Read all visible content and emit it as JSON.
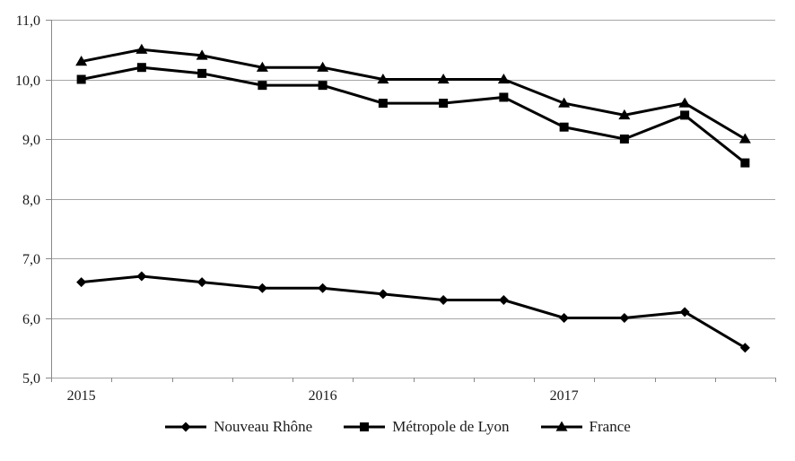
{
  "chart_data": {
    "type": "line",
    "n_points": 12,
    "points_per_year": 4,
    "x_tick_labels": [
      {
        "index": 0,
        "label": "2015"
      },
      {
        "index": 4,
        "label": "2016"
      },
      {
        "index": 8,
        "label": "2017"
      }
    ],
    "y_axis": {
      "min": 5,
      "max": 11,
      "step": 1,
      "tick_labels": [
        "5,0",
        "6,0",
        "7,0",
        "8,0",
        "9,0",
        "10,0",
        "11,0"
      ]
    },
    "grid": true,
    "legend_position": "bottom",
    "series": [
      {
        "name": "Nouveau Rhône",
        "marker": "diamond",
        "color": "#000000",
        "values": [
          6.6,
          6.7,
          6.6,
          6.5,
          6.5,
          6.4,
          6.3,
          6.3,
          6.0,
          6.0,
          6.1,
          5.5
        ]
      },
      {
        "name": "Métropole de Lyon",
        "marker": "square",
        "color": "#000000",
        "values": [
          10.0,
          10.2,
          10.1,
          9.9,
          9.9,
          9.6,
          9.6,
          9.7,
          9.2,
          9.0,
          9.4,
          8.6
        ]
      },
      {
        "name": "France",
        "marker": "triangle",
        "color": "#000000",
        "values": [
          10.3,
          10.5,
          10.4,
          10.2,
          10.2,
          10.0,
          10.0,
          10.0,
          9.6,
          9.4,
          9.6,
          9.0
        ]
      }
    ],
    "colors": {
      "gridline": "#a6a6a6",
      "axis": "#898989",
      "text": "#1a1a1a",
      "series_line": "#000000"
    }
  }
}
